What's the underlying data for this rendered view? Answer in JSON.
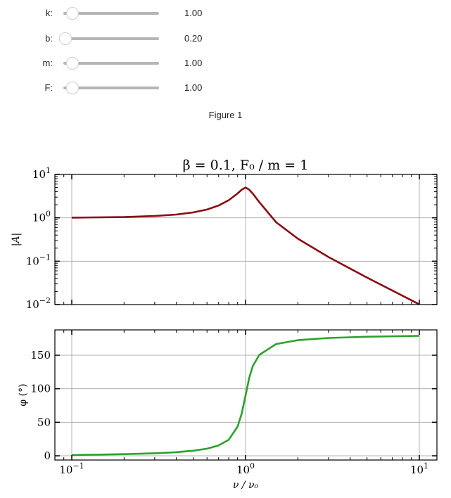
{
  "sliders": [
    {
      "name": "k",
      "label": "k:",
      "value": "1.00",
      "min": 0.8,
      "max": 10,
      "numeric": 1.0
    },
    {
      "name": "b",
      "label": "b:",
      "value": "0.20",
      "min": 0.2,
      "max": 10,
      "numeric": 0.2
    },
    {
      "name": "m",
      "label": "m:",
      "value": "1.00",
      "min": 0.8,
      "max": 10,
      "numeric": 1.0
    },
    {
      "name": "F",
      "label": "F:",
      "value": "1.00",
      "min": 0.8,
      "max": 10,
      "numeric": 1.0
    }
  ],
  "figure": {
    "title": "Figure 1",
    "suptitle": "β = 0.1, F₀ / m = 1"
  },
  "colors": {
    "amplitude": "#8b0a14",
    "phase": "#2ca02c",
    "grid": "#b0b0b0",
    "slider_track": "#b5b5b5"
  },
  "chart_data": [
    {
      "type": "line",
      "title": "β = 0.1, F₀/m = 1",
      "xlabel": "",
      "ylabel": "|A|",
      "xscale": "log",
      "yscale": "log",
      "xlim": [
        0.08,
        12.5
      ],
      "ylim": [
        0.01,
        10
      ],
      "yticks": [
        "10^-2",
        "10^-1",
        "10^0",
        "10^1"
      ],
      "grid": true,
      "series": [
        {
          "name": "|A|",
          "color": "#8b0a14",
          "x": [
            0.1,
            0.2,
            0.3,
            0.4,
            0.5,
            0.6,
            0.7,
            0.8,
            0.9,
            0.95,
            1.0,
            1.05,
            1.1,
            1.2,
            1.5,
            2.0,
            3.0,
            5.0,
            10.0
          ],
          "y": [
            1.01,
            1.04,
            1.1,
            1.19,
            1.33,
            1.55,
            1.92,
            2.55,
            3.65,
            4.45,
            5.0,
            4.46,
            3.62,
            2.3,
            0.79,
            0.33,
            0.125,
            0.042,
            0.0101
          ]
        }
      ]
    },
    {
      "type": "line",
      "xlabel": "ν / ν₀",
      "ylabel": "φ (°)",
      "xscale": "log",
      "yscale": "linear",
      "xlim": [
        0.08,
        12.5
      ],
      "ylim": [
        -5,
        188
      ],
      "xticks": [
        "10^-1",
        "10^0",
        "10^1"
      ],
      "yticks": [
        0,
        50,
        100,
        150
      ],
      "grid": true,
      "series": [
        {
          "name": "φ",
          "color": "#2ca02c",
          "x": [
            0.1,
            0.2,
            0.3,
            0.4,
            0.5,
            0.6,
            0.7,
            0.8,
            0.9,
            0.95,
            1.0,
            1.05,
            1.1,
            1.2,
            1.5,
            2.0,
            3.0,
            5.0,
            10.0
          ],
          "y": [
            1.2,
            2.4,
            3.8,
            5.4,
            7.6,
            10.6,
            15.4,
            23.9,
            43.5,
            62.8,
            90,
            116.1,
            133.6,
            150.5,
            166.7,
            172.4,
            175.7,
            177.6,
            178.8
          ]
        }
      ]
    }
  ]
}
